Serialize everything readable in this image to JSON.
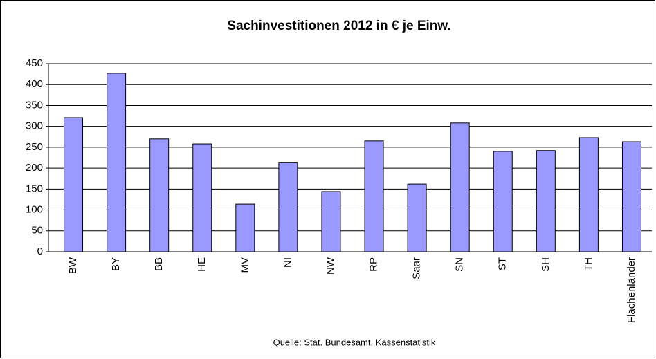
{
  "chart_data": {
    "type": "bar",
    "title": "Sachinvestitionen 2012 in € je Einw.",
    "categories": [
      "BW",
      "BY",
      "BB",
      "HE",
      "MV",
      "NI",
      "NW",
      "RP",
      "Saar",
      "SN",
      "ST",
      "SH",
      "TH",
      "Flächenländer"
    ],
    "values": [
      321,
      427,
      270,
      258,
      114,
      214,
      144,
      265,
      162,
      308,
      240,
      242,
      273,
      263
    ],
    "color": "#9999ff",
    "ylim": [
      0,
      450
    ],
    "yticks": [
      0,
      50,
      100,
      150,
      200,
      250,
      300,
      350,
      400,
      450
    ],
    "grid": true,
    "source": "Quelle: Stat. Bundesamt, Kassenstatistik"
  }
}
